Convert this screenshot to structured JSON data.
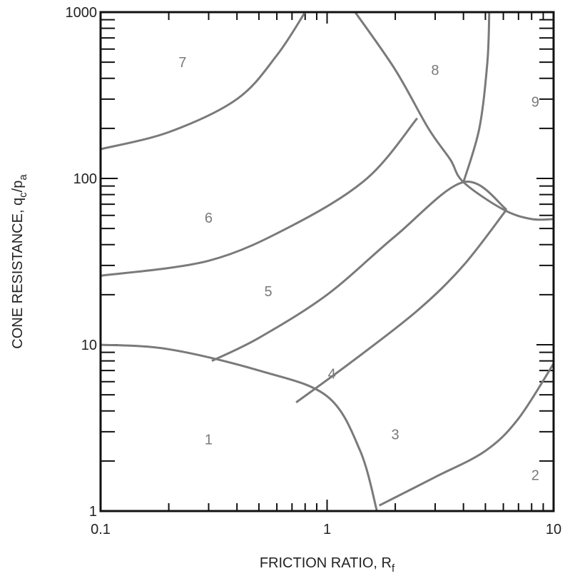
{
  "chart_data": {
    "type": "line",
    "title": "",
    "xlabel": "FRICTION RATIO, R",
    "xlabel_sub": "f",
    "ylabel": "CONE RESISTANCE, q",
    "ylabel_sub1": "c",
    "ylabel_mid": "/p",
    "ylabel_sub2": "a",
    "xscale": "log",
    "yscale": "log",
    "xlim": [
      0.1,
      10
    ],
    "ylim": [
      1,
      1000
    ],
    "x_tick_labels": [
      "0.1",
      "1",
      "10"
    ],
    "y_tick_labels": [
      "1",
      "10",
      "100",
      "1000"
    ],
    "grid": false,
    "line_color": "#7a7a7a",
    "zones": [
      {
        "label": "1",
        "x": 0.3,
        "y": 2.7
      },
      {
        "label": "2",
        "x": 8.3,
        "y": 1.65
      },
      {
        "label": "3",
        "x": 2.0,
        "y": 2.9
      },
      {
        "label": "4",
        "x": 1.05,
        "y": 6.7
      },
      {
        "label": "5",
        "x": 0.55,
        "y": 21
      },
      {
        "label": "6",
        "x": 0.3,
        "y": 58
      },
      {
        "label": "7",
        "x": 0.23,
        "y": 500
      },
      {
        "label": "8",
        "x": 3.0,
        "y": 450
      },
      {
        "label": "9",
        "x": 8.3,
        "y": 290
      }
    ],
    "series": [
      {
        "points": [
          [
            0.1,
            10
          ],
          [
            0.2,
            9.4
          ],
          [
            0.5,
            7
          ],
          [
            1.0,
            4.9
          ],
          [
            1.4,
            2.3
          ],
          [
            1.66,
            1.0
          ]
        ]
      },
      {
        "points": [
          [
            1.7,
            1.08
          ],
          [
            3.0,
            1.6
          ],
          [
            5.0,
            2.3
          ],
          [
            7.0,
            3.6
          ],
          [
            10.0,
            7.7
          ]
        ]
      },
      {
        "points": [
          [
            0.31,
            8.0
          ],
          [
            0.5,
            11
          ],
          [
            1.0,
            20
          ],
          [
            2.0,
            45
          ],
          [
            4.0,
            95
          ],
          [
            6.2,
            65
          ]
        ]
      },
      {
        "points": [
          [
            0.73,
            4.5
          ],
          [
            1.3,
            8
          ],
          [
            2.5,
            16
          ],
          [
            4.0,
            30
          ],
          [
            6.2,
            65
          ]
        ]
      },
      {
        "points": [
          [
            0.1,
            26
          ],
          [
            0.3,
            32
          ],
          [
            0.7,
            52
          ],
          [
            1.5,
            100
          ],
          [
            2.5,
            230
          ]
        ]
      },
      {
        "points": [
          [
            0.1,
            150
          ],
          [
            0.2,
            190
          ],
          [
            0.4,
            300
          ],
          [
            0.6,
            550
          ],
          [
            0.8,
            1000
          ]
        ]
      },
      {
        "points": [
          [
            1.33,
            1000
          ],
          [
            2.0,
            450
          ],
          [
            2.8,
            200
          ],
          [
            3.5,
            130
          ],
          [
            4.0,
            95
          ],
          [
            6.0,
            65
          ],
          [
            8.0,
            57
          ],
          [
            10.0,
            57
          ]
        ]
      },
      {
        "points": [
          [
            4.0,
            95
          ],
          [
            4.7,
            200
          ],
          [
            5.1,
            500
          ],
          [
            5.2,
            1000
          ]
        ]
      }
    ]
  }
}
